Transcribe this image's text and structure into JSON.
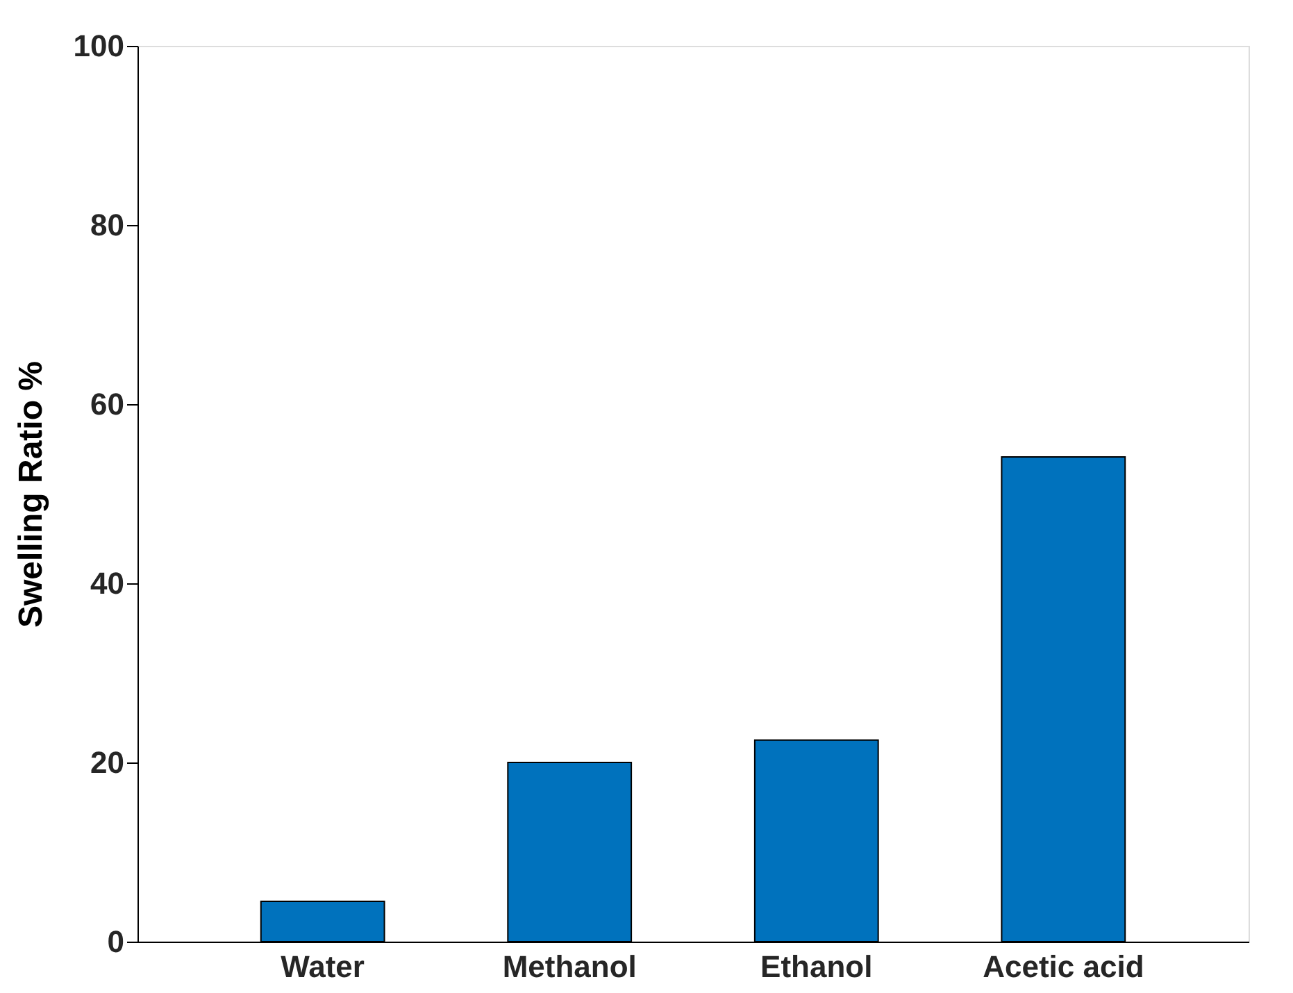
{
  "chart_data": {
    "type": "bar",
    "ylabel": "Swelling Ratio %",
    "categories": [
      "Water",
      "Methanol",
      "Ethanol",
      "Acetic acid"
    ],
    "values": [
      4.5,
      20,
      22.5,
      54.1
    ],
    "color": "#0072bd",
    "ylim": [
      0,
      100
    ],
    "yticks": [
      0,
      20,
      40,
      60,
      80,
      100
    ],
    "grid": false
  }
}
